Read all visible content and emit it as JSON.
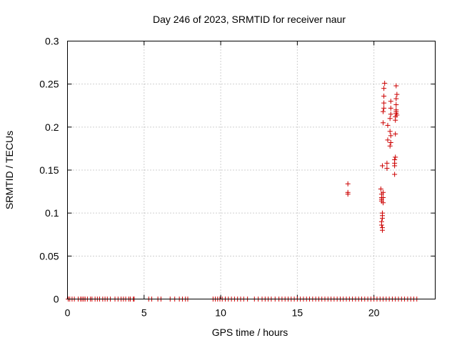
{
  "chart_data": {
    "type": "scatter",
    "title": "Day 246 of 2023, SRMTID for receiver naur",
    "xlabel": "GPS time / hours",
    "ylabel": "SRMTID / TECUs",
    "xlim": [
      0,
      24
    ],
    "ylim": [
      0,
      0.3
    ],
    "x_ticks": [
      0,
      5,
      10,
      15,
      20
    ],
    "x_tick_labels": [
      "0",
      "5",
      "10",
      "15",
      "20"
    ],
    "y_ticks": [
      0,
      0.05,
      0.1,
      0.15,
      0.2,
      0.25,
      0.3
    ],
    "y_tick_labels": [
      "0",
      "0.05",
      "0.1",
      "0.15",
      "0.2",
      "0.25",
      "0.3"
    ],
    "grid": true,
    "marker": "+",
    "series_color": "#cc0000",
    "points": [
      [
        18.3,
        0.134
      ],
      [
        18.3,
        0.124
      ],
      [
        18.3,
        0.122
      ],
      [
        20.45,
        0.128
      ],
      [
        20.5,
        0.122
      ],
      [
        20.5,
        0.118
      ],
      [
        20.5,
        0.116
      ],
      [
        20.5,
        0.114
      ],
      [
        20.55,
        0.1
      ],
      [
        20.55,
        0.097
      ],
      [
        20.55,
        0.094
      ],
      [
        20.5,
        0.09
      ],
      [
        20.5,
        0.086
      ],
      [
        20.55,
        0.083
      ],
      [
        20.55,
        0.08
      ],
      [
        20.6,
        0.124
      ],
      [
        20.6,
        0.118
      ],
      [
        20.6,
        0.112
      ],
      [
        20.55,
        0.155
      ],
      [
        20.6,
        0.205
      ],
      [
        20.6,
        0.218
      ],
      [
        20.65,
        0.222
      ],
      [
        20.65,
        0.228
      ],
      [
        20.65,
        0.236
      ],
      [
        20.65,
        0.245
      ],
      [
        20.7,
        0.251
      ],
      [
        20.85,
        0.158
      ],
      [
        20.85,
        0.152
      ],
      [
        20.9,
        0.185
      ],
      [
        20.9,
        0.202
      ],
      [
        21.05,
        0.195
      ],
      [
        21.05,
        0.178
      ],
      [
        21.1,
        0.182
      ],
      [
        21.1,
        0.19
      ],
      [
        21.05,
        0.21
      ],
      [
        21.1,
        0.215
      ],
      [
        21.1,
        0.222
      ],
      [
        21.1,
        0.23
      ],
      [
        21.35,
        0.145
      ],
      [
        21.35,
        0.155
      ],
      [
        21.35,
        0.158
      ],
      [
        21.35,
        0.162
      ],
      [
        21.4,
        0.165
      ],
      [
        21.4,
        0.192
      ],
      [
        21.4,
        0.208
      ],
      [
        21.4,
        0.212
      ],
      [
        21.45,
        0.216
      ],
      [
        21.45,
        0.22
      ],
      [
        21.45,
        0.218
      ],
      [
        21.5,
        0.214
      ],
      [
        21.45,
        0.226
      ],
      [
        21.45,
        0.233
      ],
      [
        21.5,
        0.238
      ],
      [
        21.45,
        0.248
      ]
    ],
    "baseline_zero_x": [
      0.05,
      0.15,
      0.3,
      0.45,
      0.7,
      0.85,
      0.95,
      1.05,
      1.15,
      1.3,
      1.5,
      1.6,
      1.8,
      1.95,
      2.1,
      2.3,
      2.45,
      2.6,
      2.8,
      3.1,
      3.3,
      3.5,
      3.65,
      3.8,
      4.0,
      4.1,
      4.3,
      4.35,
      5.3,
      5.5,
      5.9,
      6.1,
      6.7,
      7.0,
      7.3,
      7.5,
      7.7,
      7.85,
      9.5,
      9.65,
      9.8,
      9.95,
      10.1,
      10.3,
      10.5,
      10.7,
      10.9,
      11.1,
      11.3,
      11.5,
      11.75,
      12.2,
      12.45,
      12.7,
      12.9,
      13.1,
      13.3,
      13.55,
      13.8,
      14.0,
      14.2,
      14.4,
      14.6,
      14.8,
      15.0,
      15.2,
      15.4,
      15.6,
      15.8,
      16.0,
      16.2,
      16.4,
      16.6,
      16.8,
      17.0,
      17.2,
      17.4,
      17.6,
      17.8,
      18.0,
      18.2,
      18.4,
      18.6,
      18.8,
      19.0,
      19.2,
      19.4,
      19.6,
      19.8,
      20.0,
      20.2,
      20.4,
      20.6,
      20.8,
      21.0,
      21.2,
      21.4,
      21.6,
      21.8,
      22.0,
      22.2,
      22.4,
      22.6,
      22.8
    ]
  }
}
